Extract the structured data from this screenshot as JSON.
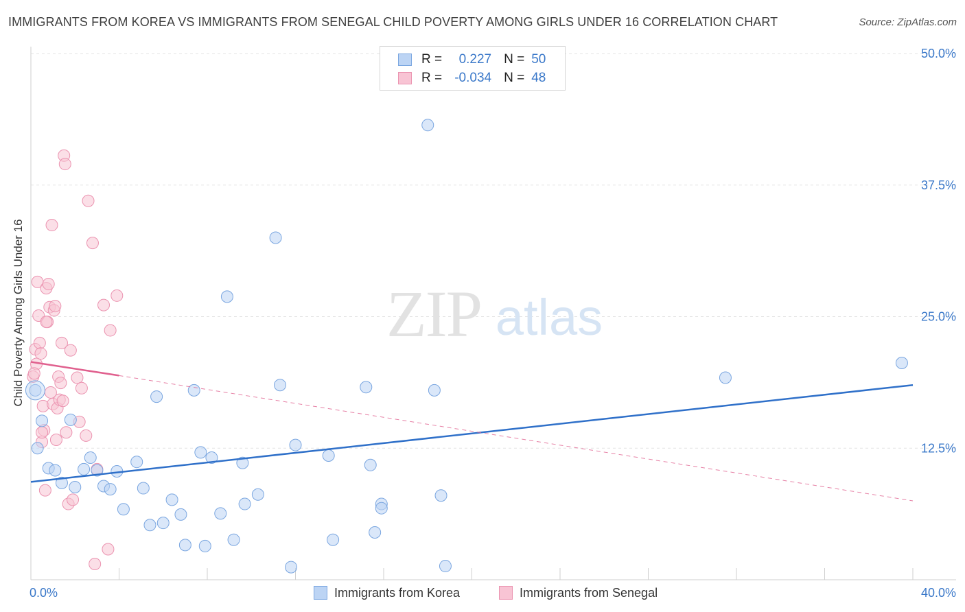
{
  "title": "IMMIGRANTS FROM KOREA VS IMMIGRANTS FROM SENEGAL CHILD POVERTY AMONG GIRLS UNDER 16 CORRELATION CHART",
  "source": "Source: ZipAtlas.com",
  "watermark": {
    "zip": "ZIP",
    "atlas": "atlas"
  },
  "legend": {
    "korea": {
      "r_label": "R =",
      "r_value": "0.227",
      "n_label": "N =",
      "n_value": "50"
    },
    "senegal": {
      "r_label": "R =",
      "r_value": "-0.034",
      "n_label": "N =",
      "n_value": "48"
    }
  },
  "colors": {
    "korea_fill": "#bcd4f4",
    "korea_stroke": "#7aa6e0",
    "korea_line": "#2f70c9",
    "senegal_fill": "#f8c4d4",
    "senegal_stroke": "#eb93b0",
    "senegal_line": "#e0608e",
    "axis_label": "#3a78c9",
    "grid": "#e3e3e3"
  },
  "chart_data": {
    "type": "scatter",
    "title": "IMMIGRANTS FROM KOREA VS IMMIGRANTS FROM SENEGAL CHILD POVERTY AMONG GIRLS UNDER 16 CORRELATION CHART",
    "xlabel": "",
    "ylabel": "Child Poverty Among Girls Under 16",
    "xlim": [
      0,
      40
    ],
    "ylim": [
      0,
      50
    ],
    "x_tick_labels": [
      {
        "value": 0,
        "label": "0.0%"
      },
      {
        "value": 40,
        "label": "40.0%"
      }
    ],
    "y_tick_labels": [
      {
        "value": 12.5,
        "label": "12.5%"
      },
      {
        "value": 25,
        "label": "25.0%"
      },
      {
        "value": 37.5,
        "label": "37.5%"
      },
      {
        "value": 50,
        "label": "50.0%"
      }
    ],
    "series": [
      {
        "name": "Immigrants from Korea",
        "points": [
          [
            0.2,
            18.0
          ],
          [
            0.5,
            15.1
          ],
          [
            0.8,
            10.6
          ],
          [
            1.1,
            10.4
          ],
          [
            1.4,
            9.2
          ],
          [
            1.8,
            15.2
          ],
          [
            2.0,
            8.8
          ],
          [
            2.4,
            10.5
          ],
          [
            2.7,
            11.6
          ],
          [
            3.0,
            10.4
          ],
          [
            3.3,
            8.9
          ],
          [
            3.6,
            8.6
          ],
          [
            3.9,
            10.3
          ],
          [
            4.2,
            6.7
          ],
          [
            4.8,
            11.2
          ],
          [
            5.1,
            8.7
          ],
          [
            5.4,
            5.2
          ],
          [
            5.7,
            17.4
          ],
          [
            6.0,
            5.4
          ],
          [
            6.4,
            7.6
          ],
          [
            6.8,
            6.2
          ],
          [
            7.0,
            3.3
          ],
          [
            7.4,
            18.0
          ],
          [
            7.7,
            12.1
          ],
          [
            7.9,
            3.2
          ],
          [
            8.2,
            11.6
          ],
          [
            8.6,
            6.3
          ],
          [
            8.9,
            26.9
          ],
          [
            9.2,
            3.8
          ],
          [
            9.6,
            11.1
          ],
          [
            9.7,
            7.2
          ],
          [
            10.3,
            8.1
          ],
          [
            11.1,
            32.5
          ],
          [
            11.3,
            18.5
          ],
          [
            11.8,
            1.2
          ],
          [
            12.0,
            12.8
          ],
          [
            13.5,
            11.8
          ],
          [
            13.7,
            3.8
          ],
          [
            15.2,
            18.3
          ],
          [
            15.4,
            10.9
          ],
          [
            15.6,
            4.5
          ],
          [
            15.9,
            7.2
          ],
          [
            15.9,
            6.8
          ],
          [
            18.0,
            43.2
          ],
          [
            18.3,
            18.0
          ],
          [
            18.8,
            1.3
          ],
          [
            18.6,
            8.0
          ],
          [
            31.5,
            19.2
          ],
          [
            39.5,
            20.6
          ],
          [
            0.3,
            12.5
          ]
        ]
      },
      {
        "name": "Immigrants from Senegal",
        "points": [
          [
            0.1,
            19.3
          ],
          [
            0.2,
            21.9
          ],
          [
            0.25,
            20.5
          ],
          [
            0.3,
            28.3
          ],
          [
            0.35,
            25.1
          ],
          [
            0.4,
            22.5
          ],
          [
            0.45,
            21.5
          ],
          [
            0.5,
            13.1
          ],
          [
            0.55,
            16.5
          ],
          [
            0.6,
            14.2
          ],
          [
            0.65,
            8.5
          ],
          [
            0.7,
            27.7
          ],
          [
            0.75,
            24.5
          ],
          [
            0.8,
            28.1
          ],
          [
            0.85,
            25.9
          ],
          [
            0.9,
            17.8
          ],
          [
            0.95,
            33.7
          ],
          [
            1.0,
            16.7
          ],
          [
            1.05,
            25.6
          ],
          [
            1.1,
            26.0
          ],
          [
            1.15,
            13.3
          ],
          [
            1.2,
            16.3
          ],
          [
            1.25,
            19.3
          ],
          [
            1.3,
            17.1
          ],
          [
            1.35,
            18.7
          ],
          [
            1.4,
            22.5
          ],
          [
            1.45,
            17.0
          ],
          [
            1.5,
            40.3
          ],
          [
            1.55,
            39.5
          ],
          [
            1.6,
            14.0
          ],
          [
            1.7,
            7.2
          ],
          [
            1.9,
            7.6
          ],
          [
            2.1,
            19.2
          ],
          [
            2.3,
            18.2
          ],
          [
            2.5,
            13.7
          ],
          [
            2.6,
            36.0
          ],
          [
            2.8,
            32.0
          ],
          [
            2.9,
            1.5
          ],
          [
            3.0,
            10.5
          ],
          [
            3.3,
            26.1
          ],
          [
            3.5,
            2.9
          ],
          [
            3.6,
            23.7
          ],
          [
            3.9,
            27.0
          ],
          [
            0.15,
            19.6
          ],
          [
            0.5,
            14.0
          ],
          [
            0.7,
            24.5
          ],
          [
            1.8,
            21.8
          ],
          [
            2.2,
            15.0
          ]
        ]
      }
    ],
    "trendlines": [
      {
        "series": "Immigrants from Korea",
        "from": [
          0,
          9.3
        ],
        "to": [
          40,
          18.5
        ],
        "style": "solid"
      },
      {
        "series": "Immigrants from Senegal",
        "from": [
          0,
          20.7
        ],
        "to": [
          4.0,
          19.4
        ],
        "style": "solid"
      },
      {
        "series": "Immigrants from Senegal",
        "from": [
          4.0,
          19.4
        ],
        "to": [
          40,
          7.5
        ],
        "style": "dashed"
      }
    ]
  },
  "bottom_legend": {
    "korea": "Immigrants from Korea",
    "senegal": "Immigrants from Senegal"
  }
}
